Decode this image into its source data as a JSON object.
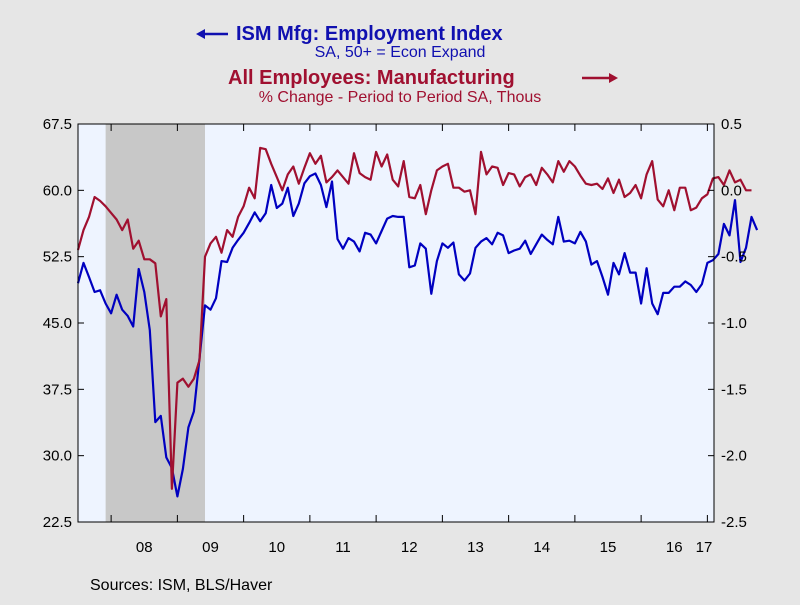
{
  "chart_data": {
    "type": "line",
    "titles": [
      {
        "text": "ISM Mfg: Employment Index",
        "subtitle": "SA, 50+ = Econ Expand",
        "arrow": "left",
        "color": "#1010b0"
      },
      {
        "text": "All Employees: Manufacturing",
        "subtitle": "% Change - Period to Period     SA, Thous",
        "arrow": "right",
        "color": "#a01030"
      }
    ],
    "x_tick_labels": [
      "08",
      "09",
      "10",
      "11",
      "12",
      "13",
      "14",
      "15",
      "16",
      "17"
    ],
    "x_range": [
      2007.5,
      2017.1
    ],
    "left_axis": {
      "range": [
        22.5,
        67.5
      ],
      "ticks": [
        "67.5",
        "60.0",
        "52.5",
        "45.0",
        "37.5",
        "30.0",
        "22.5"
      ]
    },
    "right_axis": {
      "range": [
        -2.5,
        0.5
      ],
      "ticks": [
        "0.5",
        "0.0",
        "-0.5",
        "-1.0",
        "-1.5",
        "-2.0",
        "-2.5"
      ]
    },
    "recession": [
      2007.917,
      2009.417
    ],
    "series": [
      {
        "axis": "left",
        "color": "#0000c0",
        "x_start": 2007.5,
        "step_months": 1,
        "values": [
          49.5,
          51.8,
          50.2,
          48.5,
          48.7,
          47.2,
          46.1,
          48.2,
          46.5,
          45.8,
          44.6,
          51.1,
          48.5,
          44.2,
          33.8,
          34.5,
          29.8,
          28.6,
          25.4,
          28.5,
          33.2,
          35.0,
          41.0,
          47.0,
          46.5,
          47.8,
          52.0,
          51.9,
          53.5,
          54.4,
          55.2,
          56.3,
          57.5,
          56.5,
          57.4,
          60.6,
          58.0,
          58.5,
          60.3,
          57.1,
          58.5,
          60.8,
          61.6,
          61.9,
          60.6,
          58.1,
          61.0,
          54.5,
          53.4,
          54.6,
          54.2,
          53.1,
          55.2,
          55.0,
          54.0,
          55.4,
          56.8,
          57.1,
          57.0,
          57.0,
          51.3,
          51.5,
          54.0,
          53.4,
          48.3,
          52.0,
          54.0,
          53.5,
          54.1,
          50.5,
          49.8,
          50.6,
          53.5,
          54.2,
          54.6,
          53.9,
          55.2,
          54.9,
          52.9,
          53.2,
          53.4,
          54.3,
          52.8,
          53.9,
          55.0,
          54.4,
          53.9,
          57.0,
          54.2,
          54.3,
          54.0,
          55.3,
          54.2,
          51.6,
          52.0,
          50.2,
          48.2,
          51.8,
          50.5,
          52.9,
          50.7,
          50.7,
          47.2,
          51.2,
          47.2,
          46.0,
          48.4,
          48.4,
          49.1,
          49.1,
          49.7,
          49.3,
          48.5,
          49.4,
          51.8,
          52.1,
          52.8,
          56.2,
          54.9,
          58.9,
          51.9,
          53.5,
          57.0,
          55.5
        ]
      },
      {
        "axis": "right",
        "color": "#a01030",
        "x_start": 2007.5,
        "step_months": 1,
        "values": [
          -0.45,
          -0.3,
          -0.2,
          -0.05,
          -0.08,
          -0.12,
          -0.17,
          -0.22,
          -0.3,
          -0.22,
          -0.44,
          -0.38,
          -0.52,
          -0.52,
          -0.55,
          -0.95,
          -0.82,
          -2.25,
          -1.45,
          -1.42,
          -1.48,
          -1.42,
          -1.28,
          -0.5,
          -0.4,
          -0.35,
          -0.47,
          -0.3,
          -0.35,
          -0.2,
          -0.12,
          0.02,
          -0.06,
          0.32,
          0.31,
          0.2,
          0.1,
          0.0,
          0.12,
          0.18,
          0.05,
          0.17,
          0.28,
          0.2,
          0.26,
          0.06,
          0.1,
          0.15,
          0.1,
          0.05,
          0.28,
          0.13,
          0.1,
          0.08,
          0.29,
          0.18,
          0.27,
          0.08,
          0.03,
          0.22,
          -0.05,
          -0.06,
          0.04,
          -0.18,
          0.0,
          0.15,
          0.18,
          0.2,
          0.02,
          0.02,
          -0.01,
          0.0,
          -0.18,
          0.29,
          0.12,
          0.18,
          0.17,
          0.04,
          0.13,
          0.12,
          0.03,
          0.1,
          0.12,
          0.04,
          0.17,
          0.12,
          0.06,
          0.22,
          0.14,
          0.22,
          0.18,
          0.11,
          0.05,
          0.04,
          0.05,
          0.01,
          0.09,
          -0.02,
          0.08,
          -0.05,
          -0.02,
          0.04,
          -0.06,
          0.12,
          0.22,
          -0.07,
          -0.12,
          0.0,
          -0.15,
          0.02,
          0.02,
          -0.15,
          -0.13,
          -0.06,
          -0.03,
          0.09,
          0.1,
          0.04,
          0.15,
          0.06,
          0.08,
          -0.0,
          0.0
        ]
      }
    ]
  },
  "footer": {
    "sources": "Sources:  ISM, BLS/Haver"
  },
  "colors": {
    "background": "#e6e6e6",
    "plot_bg": "#eef4ff",
    "recession": "#c8c8c8"
  }
}
